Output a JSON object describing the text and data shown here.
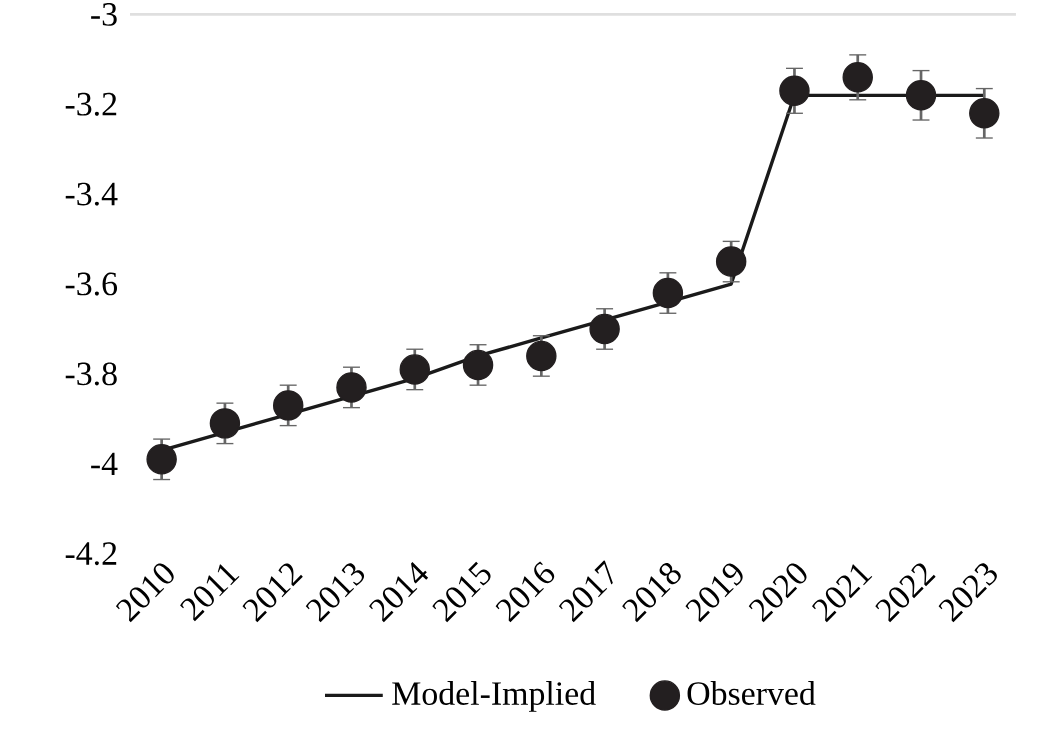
{
  "chart_data": {
    "type": "line",
    "categories": [
      "2010",
      "2011",
      "2012",
      "2013",
      "2014",
      "2015",
      "2016",
      "2017",
      "2018",
      "2019",
      "2020",
      "2021",
      "2022",
      "2023"
    ],
    "series": [
      {
        "name": "Model-Implied",
        "color": "#1a1a1a",
        "marker": "none",
        "values": [
          -3.97,
          -3.93,
          -3.89,
          -3.85,
          -3.81,
          -3.76,
          -3.72,
          -3.68,
          -3.64,
          -3.6,
          -3.18,
          -3.18,
          -3.18,
          -3.18
        ]
      },
      {
        "name": "Observed",
        "type": "scatter",
        "color": "#231f20",
        "marker": "circle",
        "values": [
          -3.99,
          -3.91,
          -3.87,
          -3.83,
          -3.79,
          -3.78,
          -3.76,
          -3.7,
          -3.62,
          -3.55,
          -3.17,
          -3.14,
          -3.18,
          -3.22
        ],
        "errors": [
          0.045,
          0.045,
          0.045,
          0.045,
          0.045,
          0.045,
          0.045,
          0.045,
          0.045,
          0.045,
          0.05,
          0.05,
          0.055,
          0.055
        ]
      }
    ],
    "ylim": [
      -4.2,
      -3
    ],
    "yticks": [
      -4.2,
      -4,
      -3.8,
      -3.6,
      -3.4,
      -3.2,
      -3
    ],
    "legend": "bottom",
    "grid": false
  }
}
